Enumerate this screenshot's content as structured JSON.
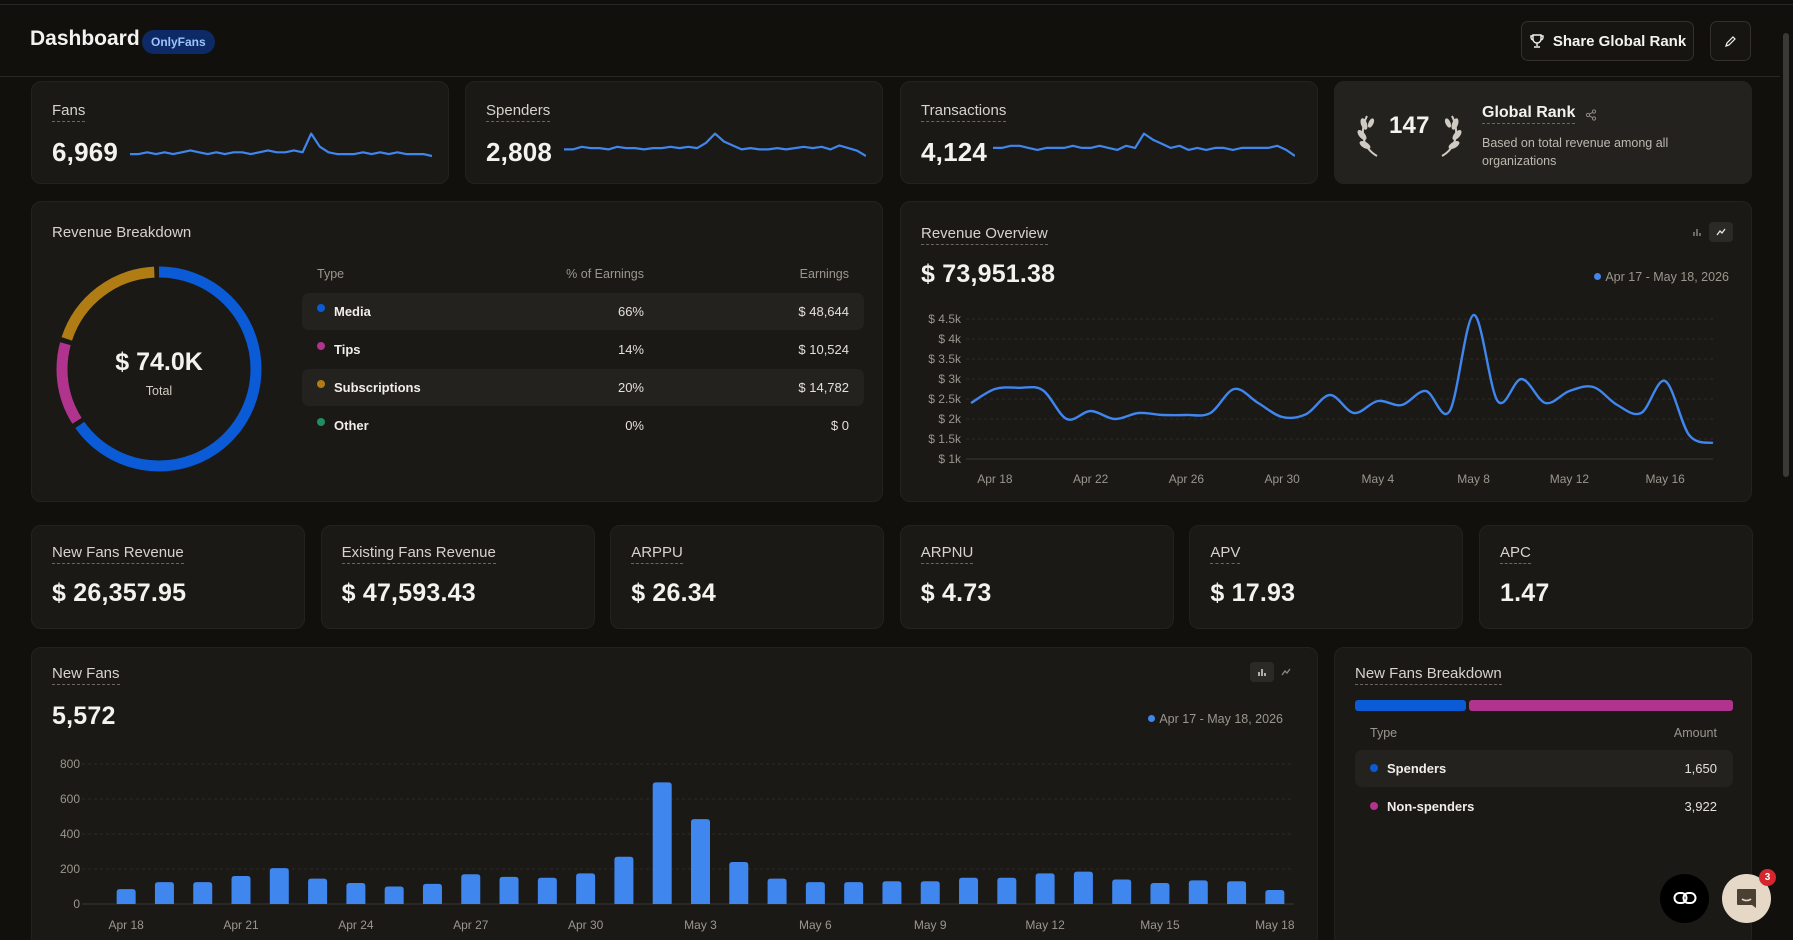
{
  "header": {
    "title": "Dashboard",
    "badge": "OnlyFans",
    "share_label": "Share Global Rank"
  },
  "stats": [
    {
      "label": "Fans",
      "value": "6,969",
      "spark": [
        5,
        5,
        6,
        5,
        6,
        5,
        6,
        7,
        6,
        5,
        6,
        5,
        6,
        6,
        5,
        6,
        7,
        6,
        6,
        7,
        6,
        16,
        9,
        6,
        5,
        5,
        5,
        6,
        5,
        6,
        5,
        6,
        5,
        5,
        5,
        4
      ]
    },
    {
      "label": "Spenders",
      "value": "2,808",
      "spark": [
        9,
        9,
        11,
        10,
        10,
        9,
        11,
        10,
        10,
        9,
        10,
        10,
        11,
        10,
        11,
        10,
        14,
        21,
        15,
        12,
        9,
        10,
        9,
        9,
        10,
        9,
        10,
        11,
        10,
        11,
        9,
        12,
        10,
        8,
        4
      ]
    },
    {
      "label": "Transactions",
      "value": "4,124",
      "spark": [
        9,
        9,
        10,
        10,
        9,
        8,
        9,
        9,
        9,
        10,
        9,
        9,
        10,
        9,
        8,
        10,
        9,
        16,
        13,
        11,
        9,
        10,
        8,
        9,
        8,
        9,
        9,
        8,
        9,
        9,
        9,
        9,
        10,
        8,
        5
      ]
    }
  ],
  "global_rank": {
    "rank": "147",
    "title": "Global Rank",
    "desc": "Based on total revenue among all organizations"
  },
  "revenue_breakdown": {
    "title": "Revenue Breakdown",
    "center_value": "$ 74.0K",
    "center_label": "Total",
    "headers": {
      "type": "Type",
      "pct": "% of Earnings",
      "earnings": "Earnings"
    },
    "rows": [
      {
        "type": "Media",
        "pct": "66%",
        "earnings": "$ 48,644",
        "color": "#0b5ad6"
      },
      {
        "type": "Tips",
        "pct": "14%",
        "earnings": "$ 10,524",
        "color": "#b0338e"
      },
      {
        "type": "Subscriptions",
        "pct": "20%",
        "earnings": "$ 14,782",
        "color": "#b07d14"
      },
      {
        "type": "Other",
        "pct": "0%",
        "earnings": "$ 0",
        "color": "#1f8f5e"
      }
    ]
  },
  "revenue_overview": {
    "title": "Revenue Overview",
    "total": "$ 73,951.38",
    "range": "Apr 17 - May 18, 2026"
  },
  "metrics": [
    {
      "label": "New Fans Revenue",
      "value": "$ 26,357.95"
    },
    {
      "label": "Existing Fans Revenue",
      "value": "$ 47,593.43"
    },
    {
      "label": "ARPPU",
      "value": "$ 26.34"
    },
    {
      "label": "ARPNU",
      "value": "$ 4.73"
    },
    {
      "label": "APV",
      "value": "$ 17.93"
    },
    {
      "label": "APC",
      "value": "1.47"
    }
  ],
  "new_fans": {
    "title": "New Fans",
    "total": "5,572",
    "range": "Apr 17 - May 18, 2026"
  },
  "new_fans_breakdown": {
    "title": "New Fans Breakdown",
    "headers": {
      "type": "Type",
      "amount": "Amount"
    },
    "rows": [
      {
        "type": "Spenders",
        "amount": "1,650",
        "color": "#0b5ad6"
      },
      {
        "type": "Non-spenders",
        "amount": "3,922",
        "color": "#b0338e"
      }
    ]
  },
  "chat": {
    "badge": "3"
  },
  "chart_data": [
    {
      "type": "pie",
      "categories": [
        "Media",
        "Tips",
        "Subscriptions",
        "Other"
      ],
      "values": [
        66,
        14,
        20,
        0
      ],
      "colors": [
        "#0b5ad6",
        "#b0338e",
        "#b07d14",
        "#1f8f5e"
      ]
    },
    {
      "type": "line",
      "x": [
        "Apr 17",
        "Apr 18",
        "Apr 19",
        "Apr 20",
        "Apr 21",
        "Apr 22",
        "Apr 23",
        "Apr 24",
        "Apr 25",
        "Apr 26",
        "Apr 27",
        "Apr 28",
        "Apr 29",
        "Apr 30",
        "May 1",
        "May 2",
        "May 3",
        "May 4",
        "May 5",
        "May 6",
        "May 7",
        "May 8",
        "May 9",
        "May 10",
        "May 11",
        "May 12",
        "May 13",
        "May 14",
        "May 15",
        "May 16",
        "May 17",
        "May 18"
      ],
      "series": [
        {
          "values": [
            2400,
            2750,
            2780,
            2720,
            2000,
            2200,
            2000,
            2150,
            2100,
            2100,
            2150,
            2750,
            2400,
            2050,
            2120,
            2600,
            2150,
            2450,
            2350,
            2700,
            2200,
            4600,
            2450,
            3000,
            2400,
            2700,
            2800,
            2350,
            2150,
            2950,
            1600,
            1400
          ]
        }
      ],
      "yticks": [
        "$ 1k",
        "$ 1.5k",
        "$ 2k",
        "$ 2.5k",
        "$ 3k",
        "$ 3.5k",
        "$ 4k",
        "$ 4.5k"
      ],
      "xticks": [
        "Apr 18",
        "Apr 22",
        "Apr 26",
        "Apr 30",
        "May 4",
        "May 8",
        "May 12",
        "May 16"
      ],
      "ylim": [
        1000,
        4500
      ],
      "grid": true
    },
    {
      "type": "bar",
      "categories": [
        "Apr 18",
        "Apr 19",
        "Apr 20",
        "Apr 21",
        "Apr 22",
        "Apr 23",
        "Apr 24",
        "Apr 25",
        "Apr 26",
        "Apr 27",
        "Apr 28",
        "Apr 29",
        "Apr 30",
        "May 1",
        "May 2",
        "May 3",
        "May 4",
        "May 5",
        "May 6",
        "May 7",
        "May 8",
        "May 9",
        "May 10",
        "May 11",
        "May 12",
        "May 13",
        "May 14",
        "May 15",
        "May 16",
        "May 17",
        "May 18"
      ],
      "values": [
        85,
        125,
        125,
        160,
        205,
        145,
        120,
        100,
        115,
        170,
        155,
        150,
        175,
        270,
        695,
        485,
        240,
        145,
        125,
        125,
        130,
        130,
        150,
        150,
        175,
        185,
        140,
        120,
        135,
        130,
        80
      ],
      "yticks": [
        "0",
        "200",
        "400",
        "600",
        "800"
      ],
      "xticks": [
        "Apr 18",
        "Apr 21",
        "Apr 24",
        "Apr 27",
        "Apr 30",
        "May 3",
        "May 6",
        "May 9",
        "May 12",
        "May 15",
        "May 18"
      ],
      "ylim": [
        0,
        800
      ],
      "grid": true
    },
    {
      "type": "bar",
      "categories": [
        "Spenders",
        "Non-spenders"
      ],
      "values": [
        1650,
        3922
      ],
      "colors": [
        "#0b5ad6",
        "#b0338e"
      ]
    }
  ]
}
